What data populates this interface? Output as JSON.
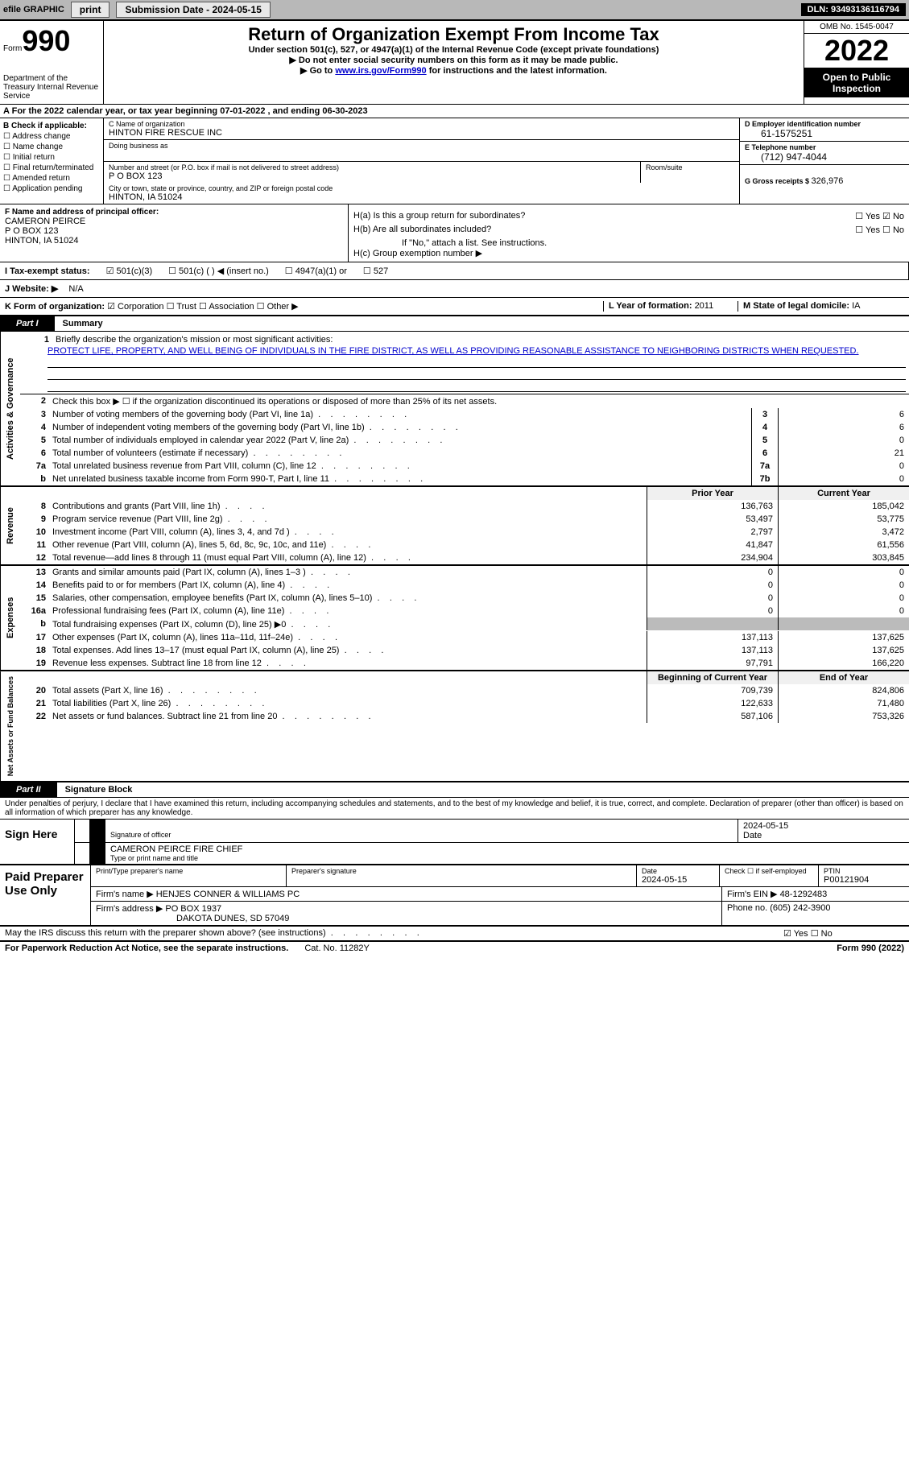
{
  "topbar": {
    "efile": "efile GRAPHIC",
    "print": "print",
    "sub_label": "Submission Date - ",
    "sub_date": "2024-05-15",
    "dln_label": "DLN: ",
    "dln": "93493136116794"
  },
  "header": {
    "form_word": "Form",
    "form_no": "990",
    "dept": "Department of the Treasury Internal Revenue Service",
    "title": "Return of Organization Exempt From Income Tax",
    "sub1": "Under section 501(c), 527, or 4947(a)(1) of the Internal Revenue Code (except private foundations)",
    "sub2": "▶ Do not enter social security numbers on this form as it may be made public.",
    "sub3_pre": "▶ Go to ",
    "sub3_link": "www.irs.gov/Form990",
    "sub3_post": " for instructions and the latest information.",
    "omb": "OMB No. 1545-0047",
    "year": "2022",
    "inspect": "Open to Public Inspection"
  },
  "line_a": "For the 2022 calendar year, or tax year beginning 07-01-2022    , and ending 06-30-2023",
  "b": {
    "head": "B Check if applicable:",
    "opts": [
      "Address change",
      "Name change",
      "Initial return",
      "Final return/terminated",
      "Amended return",
      "Application pending"
    ]
  },
  "c": {
    "name_label": "C Name of organization",
    "name": "HINTON FIRE RESCUE INC",
    "dba_label": "Doing business as",
    "addr_label": "Number and street (or P.O. box if mail is not delivered to street address)",
    "room_label": "Room/suite",
    "addr": "P O BOX 123",
    "city_label": "City or town, state or province, country, and ZIP or foreign postal code",
    "city": "HINTON, IA  51024"
  },
  "d": {
    "label": "D Employer identification number",
    "val": "61-1575251"
  },
  "e": {
    "label": "E Telephone number",
    "val": "(712) 947-4044"
  },
  "g": {
    "label": "G Gross receipts $ ",
    "val": "326,976"
  },
  "f": {
    "label": "F  Name and address of principal officer:",
    "name": "CAMERON PEIRCE",
    "addr1": "P O BOX 123",
    "addr2": "HINTON, IA  51024"
  },
  "h": {
    "a": "H(a)  Is this a group return for subordinates?",
    "b": "H(b)  Are all subordinates included?",
    "note": "If \"No,\" attach a list. See instructions.",
    "c": "H(c)  Group exemption number ▶",
    "yes": "Yes",
    "no": "No"
  },
  "i": {
    "label": "I    Tax-exempt status:",
    "o1": "501(c)(3)",
    "o2": "501(c) (  ) ◀ (insert no.)",
    "o3": "4947(a)(1) or",
    "o4": "527"
  },
  "j": {
    "label": "J   Website: ▶",
    "val": "N/A"
  },
  "k": {
    "label": "K Form of organization:",
    "o1": "Corporation",
    "o2": "Trust",
    "o3": "Association",
    "o4": "Other ▶"
  },
  "l": {
    "label": "L Year of formation: ",
    "val": "2011"
  },
  "m": {
    "label": "M State of legal domicile: ",
    "val": "IA"
  },
  "part1": {
    "tab": "Part I",
    "name": "Summary"
  },
  "s1": {
    "q1": "Briefly describe the organization's mission or most significant activities:",
    "mission": "PROTECT LIFE, PROPERTY, AND WELL BEING OF INDIVIDUALS IN THE FIRE DISTRICT, AS WELL AS PROVIDING REASONABLE ASSISTANCE TO NEIGHBORING DISTRICTS WHEN REQUESTED.",
    "q2": "Check this box ▶ ☐  if the organization discontinued its operations or disposed of more than 25% of its net assets.",
    "rows": [
      {
        "n": "3",
        "d": "Number of voting members of the governing body (Part VI, line 1a)",
        "box": "3",
        "v": "6"
      },
      {
        "n": "4",
        "d": "Number of independent voting members of the governing body (Part VI, line 1b)",
        "box": "4",
        "v": "6"
      },
      {
        "n": "5",
        "d": "Total number of individuals employed in calendar year 2022 (Part V, line 2a)",
        "box": "5",
        "v": "0"
      },
      {
        "n": "6",
        "d": "Total number of volunteers (estimate if necessary)",
        "box": "6",
        "v": "21"
      },
      {
        "n": "7a",
        "d": "Total unrelated business revenue from Part VIII, column (C), line 12",
        "box": "7a",
        "v": "0"
      },
      {
        "n": "b",
        "d": "Net unrelated business taxable income from Form 990-T, Part I, line 11",
        "box": "7b",
        "v": "0"
      }
    ]
  },
  "headers": {
    "prior": "Prior Year",
    "current": "Current Year",
    "begin": "Beginning of Current Year",
    "end": "End of Year"
  },
  "revenue": [
    {
      "n": "8",
      "d": "Contributions and grants (Part VIII, line 1h)",
      "p": "136,763",
      "c": "185,042"
    },
    {
      "n": "9",
      "d": "Program service revenue (Part VIII, line 2g)",
      "p": "53,497",
      "c": "53,775"
    },
    {
      "n": "10",
      "d": "Investment income (Part VIII, column (A), lines 3, 4, and 7d )",
      "p": "2,797",
      "c": "3,472"
    },
    {
      "n": "11",
      "d": "Other revenue (Part VIII, column (A), lines 5, 6d, 8c, 9c, 10c, and 11e)",
      "p": "41,847",
      "c": "61,556"
    },
    {
      "n": "12",
      "d": "Total revenue—add lines 8 through 11 (must equal Part VIII, column (A), line 12)",
      "p": "234,904",
      "c": "303,845"
    }
  ],
  "expenses": [
    {
      "n": "13",
      "d": "Grants and similar amounts paid (Part IX, column (A), lines 1–3 )",
      "p": "0",
      "c": "0"
    },
    {
      "n": "14",
      "d": "Benefits paid to or for members (Part IX, column (A), line 4)",
      "p": "0",
      "c": "0"
    },
    {
      "n": "15",
      "d": "Salaries, other compensation, employee benefits (Part IX, column (A), lines 5–10)",
      "p": "0",
      "c": "0"
    },
    {
      "n": "16a",
      "d": "Professional fundraising fees (Part IX, column (A), line 11e)",
      "p": "0",
      "c": "0"
    },
    {
      "n": "b",
      "d": "Total fundraising expenses (Part IX, column (D), line 25) ▶0",
      "p": "gray",
      "c": "gray"
    },
    {
      "n": "17",
      "d": "Other expenses (Part IX, column (A), lines 11a–11d, 11f–24e)",
      "p": "137,113",
      "c": "137,625"
    },
    {
      "n": "18",
      "d": "Total expenses. Add lines 13–17 (must equal Part IX, column (A), line 25)",
      "p": "137,113",
      "c": "137,625"
    },
    {
      "n": "19",
      "d": "Revenue less expenses. Subtract line 18 from line 12",
      "p": "97,791",
      "c": "166,220"
    }
  ],
  "netassets": [
    {
      "n": "20",
      "d": "Total assets (Part X, line 16)",
      "p": "709,739",
      "c": "824,806"
    },
    {
      "n": "21",
      "d": "Total liabilities (Part X, line 26)",
      "p": "122,633",
      "c": "71,480"
    },
    {
      "n": "22",
      "d": "Net assets or fund balances. Subtract line 21 from line 20",
      "p": "587,106",
      "c": "753,326"
    }
  ],
  "sides": {
    "ag": "Activities & Governance",
    "rev": "Revenue",
    "exp": "Expenses",
    "na": "Net Assets or Fund Balances"
  },
  "part2": {
    "tab": "Part II",
    "name": "Signature Block"
  },
  "sig": {
    "decl": "Under penalties of perjury, I declare that I have examined this return, including accompanying schedules and statements, and to the best of my knowledge and belief, it is true, correct, and complete. Declaration of preparer (other than officer) is based on all information of which preparer has any knowledge.",
    "sign_here": "Sign Here",
    "sig_label": "Signature of officer",
    "date": "2024-05-15",
    "date_label": "Date",
    "name": "CAMERON PEIRCE FIRE CHIEF",
    "name_label": "Type or print name and title"
  },
  "prep": {
    "title": "Paid Preparer Use Only",
    "h_name": "Print/Type preparer's name",
    "h_sig": "Preparer's signature",
    "h_date": "Date",
    "date": "2024-05-15",
    "h_self": "Check ☐ if self-employed",
    "h_ptin": "PTIN",
    "ptin": "P00121904",
    "firm_label": "Firm's name      ▶ ",
    "firm": "HENJES CONNER & WILLIAMS PC",
    "ein_label": "Firm's EIN ▶ ",
    "ein": "48-1292483",
    "addr_label": "Firm's address ▶ ",
    "addr1": "PO BOX 1937",
    "addr2": "DAKOTA DUNES, SD  57049",
    "phone_label": "Phone no. ",
    "phone": "(605) 242-3900"
  },
  "footer_q": {
    "q": "May the IRS discuss this return with the preparer shown above? (see instructions)",
    "yes": "Yes",
    "no": "No"
  },
  "page_footer": {
    "l": "For Paperwork Reduction Act Notice, see the separate instructions.",
    "c": "Cat. No. 11282Y",
    "r": "Form 990 (2022)"
  },
  "colors": {
    "link": "#0000cc",
    "topbar_bg": "#b8b8b8",
    "gray_fill": "#bbbbbb"
  }
}
